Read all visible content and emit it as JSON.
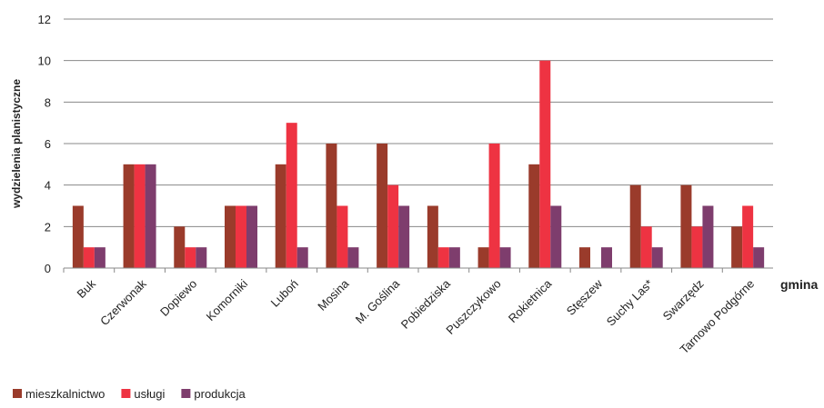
{
  "chart_data": {
    "type": "bar",
    "y_label": "wydzielenia planistyczne",
    "x_label": "gmina",
    "categories": [
      "Buk",
      "Czerwonak",
      "Dopiewo",
      "Komorniki",
      "Luboń",
      "Mosina",
      "M. Goślina",
      "Pobiedziska",
      "Puszczykowo",
      "Rokietnica",
      "Stęszew",
      "Suchy Las*",
      "Swarzędz",
      "Tarnowo Podgórne"
    ],
    "series": [
      {
        "name": "mieszkalnictwo",
        "color": "#9a3b2b",
        "values": [
          3,
          5,
          2,
          3,
          5,
          6,
          6,
          3,
          1,
          5,
          1,
          4,
          4,
          2
        ]
      },
      {
        "name": "usługi",
        "color": "#ee3342",
        "values": [
          1,
          5,
          1,
          3,
          7,
          3,
          4,
          1,
          6,
          10,
          0,
          2,
          2,
          3
        ]
      },
      {
        "name": "produkcja",
        "color": "#7e3d6d",
        "values": [
          1,
          5,
          1,
          3,
          1,
          1,
          3,
          1,
          1,
          3,
          1,
          1,
          3,
          1
        ]
      }
    ],
    "ylim": [
      0,
      12
    ],
    "yticks": [
      0,
      2,
      4,
      6,
      8,
      10,
      12
    ],
    "grid": true
  }
}
